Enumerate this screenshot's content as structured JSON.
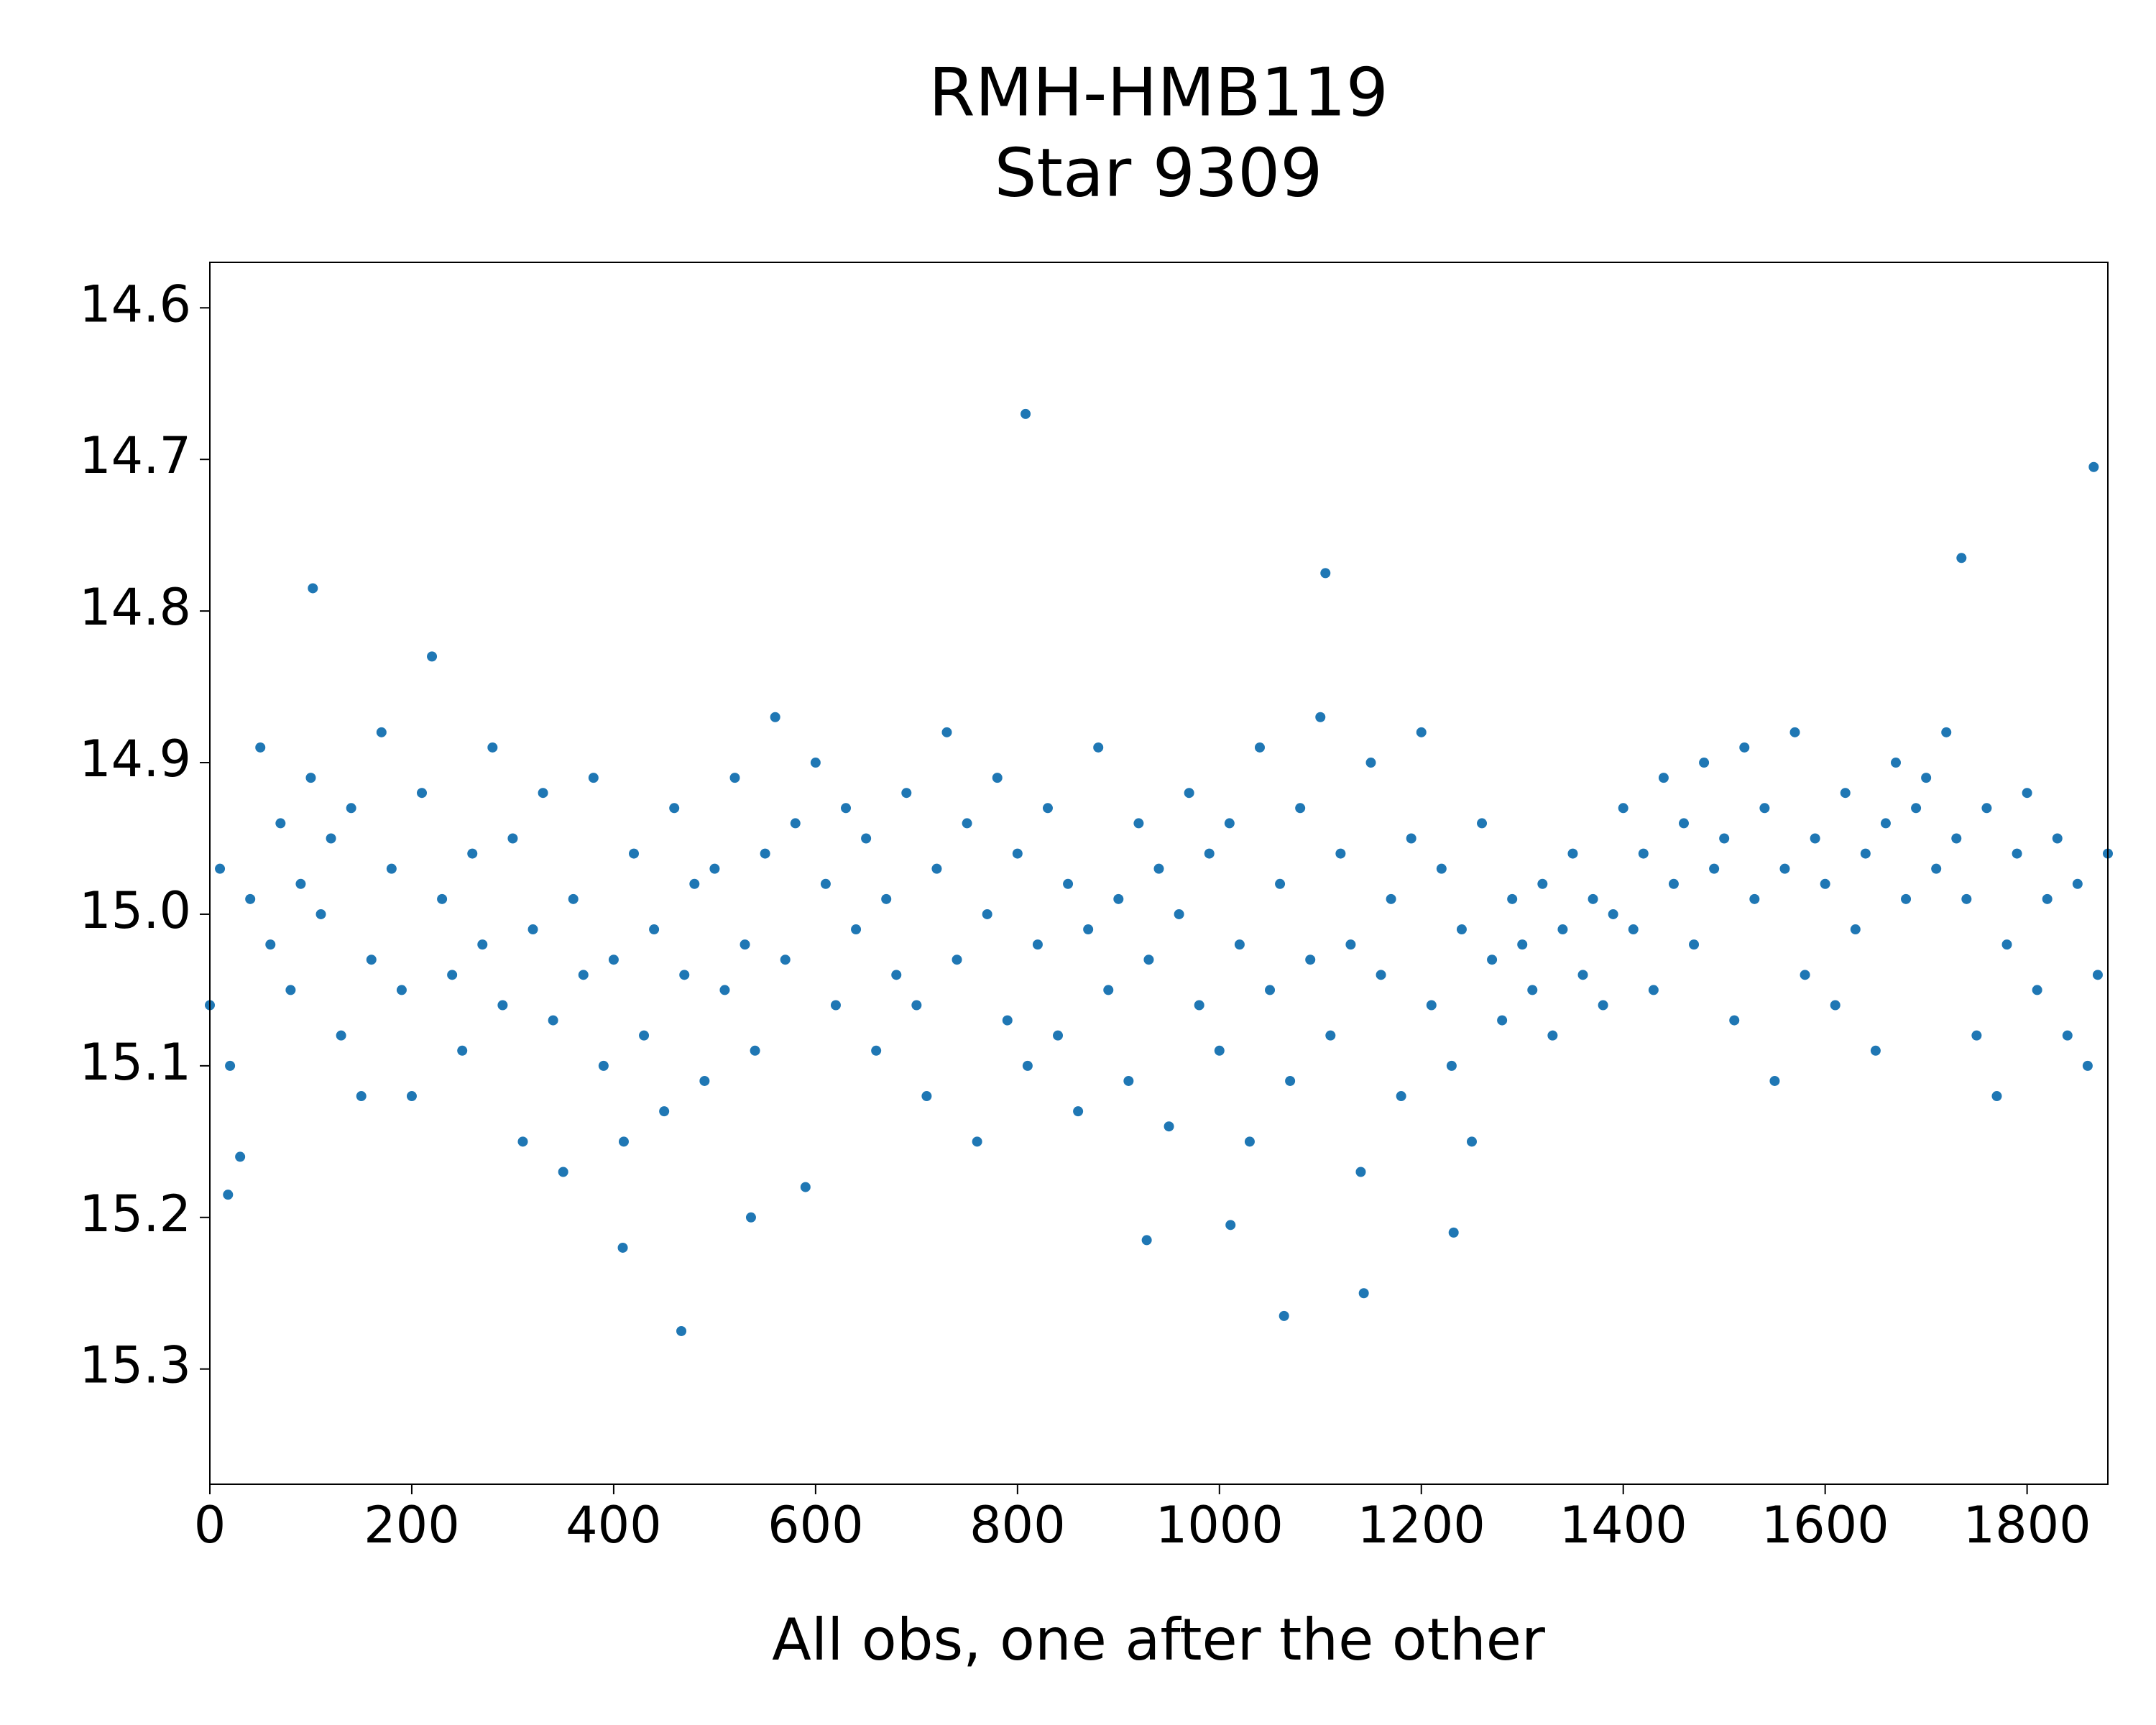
{
  "chart_data": {
    "type": "scatter",
    "title": [
      "RMH-HMB119",
      "Star 9309"
    ],
    "x_label": "All obs, one after the other",
    "color": "#1f77b4",
    "xlim": [
      0,
      1880
    ],
    "xticks": [
      0,
      200,
      400,
      600,
      800,
      1000,
      1200,
      1400,
      1600,
      1800
    ],
    "ylim": [
      15.376,
      14.57
    ],
    "yticks": [
      14.6,
      14.7,
      14.8,
      14.9,
      {
        "value": 15,
        "label": "15.0"
      },
      15.1,
      15.2,
      15.3
    ],
    "x": [
      0,
      10,
      20,
      30,
      40,
      50,
      60,
      70,
      80,
      90,
      100,
      110,
      120,
      130,
      140,
      150,
      160,
      170,
      180,
      190,
      200,
      210,
      220,
      230,
      240,
      250,
      260,
      270,
      280,
      290,
      300,
      310,
      320,
      330,
      340,
      350,
      360,
      370,
      380,
      390,
      400,
      410,
      420,
      430,
      440,
      450,
      460,
      470,
      480,
      490,
      500,
      510,
      520,
      530,
      540,
      550,
      560,
      570,
      580,
      590,
      600,
      610,
      620,
      630,
      640,
      650,
      660,
      670,
      680,
      690,
      700,
      710,
      720,
      730,
      740,
      750,
      760,
      770,
      780,
      790,
      800,
      810,
      820,
      830,
      840,
      850,
      860,
      870,
      880,
      890,
      900,
      910,
      920,
      930,
      940,
      950,
      960,
      970,
      980,
      990,
      1000,
      1010,
      1020,
      1030,
      1040,
      1050,
      1060,
      1070,
      1080,
      1090,
      1100,
      1110,
      1120,
      1130,
      1140,
      1150,
      1160,
      1170,
      1180,
      1190,
      1200,
      1210,
      1220,
      1230,
      1240,
      1250,
      1260,
      1270,
      1280,
      1290,
      1300,
      1310,
      1320,
      1330,
      1340,
      1350,
      1360,
      1370,
      1380,
      1390,
      1400,
      1410,
      1420,
      1430,
      1440,
      1450,
      1460,
      1470,
      1480,
      1490,
      1500,
      1510,
      1520,
      1530,
      1540,
      1550,
      1560,
      1570,
      1580,
      1590,
      1600,
      1610,
      1620,
      1630,
      1640,
      1650,
      1660,
      1670,
      1680,
      1690,
      1700,
      1710,
      1720,
      1730,
      1740,
      1750,
      1760,
      1770,
      1780,
      1790,
      1800,
      1810,
      1820,
      1830,
      1840,
      1850,
      1860,
      1870,
      1880,
      808,
      1866,
      1735,
      102,
      1105,
      467,
      1064,
      1143,
      409,
      928,
      1232,
      536,
      18,
      1011
    ],
    "y": [
      15.06,
      14.97,
      15.1,
      15.16,
      14.99,
      14.89,
      15.02,
      14.94,
      15.05,
      14.98,
      14.91,
      15.0,
      14.95,
      15.08,
      14.93,
      15.12,
      15.03,
      14.88,
      14.97,
      15.05,
      15.12,
      14.92,
      14.83,
      14.99,
      15.04,
      15.09,
      14.96,
      15.02,
      14.89,
      15.06,
      14.95,
      15.15,
      15.01,
      14.92,
      15.07,
      15.17,
      14.99,
      15.04,
      14.91,
      15.1,
      15.03,
      15.15,
      14.96,
      15.08,
      15.01,
      15.13,
      14.93,
      15.04,
      14.98,
      15.11,
      14.97,
      15.05,
      14.91,
      15.02,
      15.09,
      14.96,
      14.87,
      15.03,
      14.94,
      15.18,
      14.9,
      14.98,
      15.06,
      14.93,
      15.01,
      14.95,
      15.09,
      14.99,
      15.04,
      14.92,
      15.06,
      15.12,
      14.97,
      14.88,
      15.03,
      14.94,
      15.15,
      15.0,
      14.91,
      15.07,
      14.96,
      15.1,
      15.02,
      14.93,
      15.08,
      14.98,
      15.13,
      15.01,
      14.89,
      15.05,
      14.99,
      15.11,
      14.94,
      15.03,
      14.97,
      15.14,
      15.0,
      14.92,
      15.06,
      14.96,
      15.09,
      14.94,
      15.02,
      15.15,
      14.89,
      15.05,
      14.98,
      15.11,
      14.93,
      15.03,
      14.87,
      15.08,
      14.96,
      15.02,
      15.17,
      14.9,
      15.04,
      14.99,
      15.12,
      14.95,
      14.88,
      15.06,
      14.97,
      15.1,
      15.01,
      15.15,
      14.94,
      15.03,
      15.07,
      14.99,
      15.02,
      15.05,
      14.98,
      15.08,
      15.01,
      14.96,
      15.04,
      14.99,
      15.06,
      15.0,
      14.93,
      15.01,
      14.96,
      15.05,
      14.91,
      14.98,
      14.94,
      15.02,
      14.9,
      14.97,
      14.95,
      15.07,
      14.89,
      14.99,
      14.93,
      15.11,
      14.97,
      14.88,
      15.04,
      14.95,
      14.98,
      15.06,
      14.92,
      15.01,
      14.96,
      15.09,
      14.94,
      14.9,
      14.99,
      14.93,
      14.91,
      14.97,
      14.88,
      14.95,
      14.99,
      15.08,
      14.93,
      15.12,
      15.02,
      14.96,
      14.92,
      15.05,
      14.99,
      14.95,
      15.08,
      14.98,
      15.1,
      15.04,
      14.96,
      14.67,
      14.705,
      14.765,
      14.785,
      14.775,
      15.275,
      15.265,
      15.25,
      15.22,
      15.215,
      15.21,
      15.2,
      15.185,
      15.205
    ]
  }
}
